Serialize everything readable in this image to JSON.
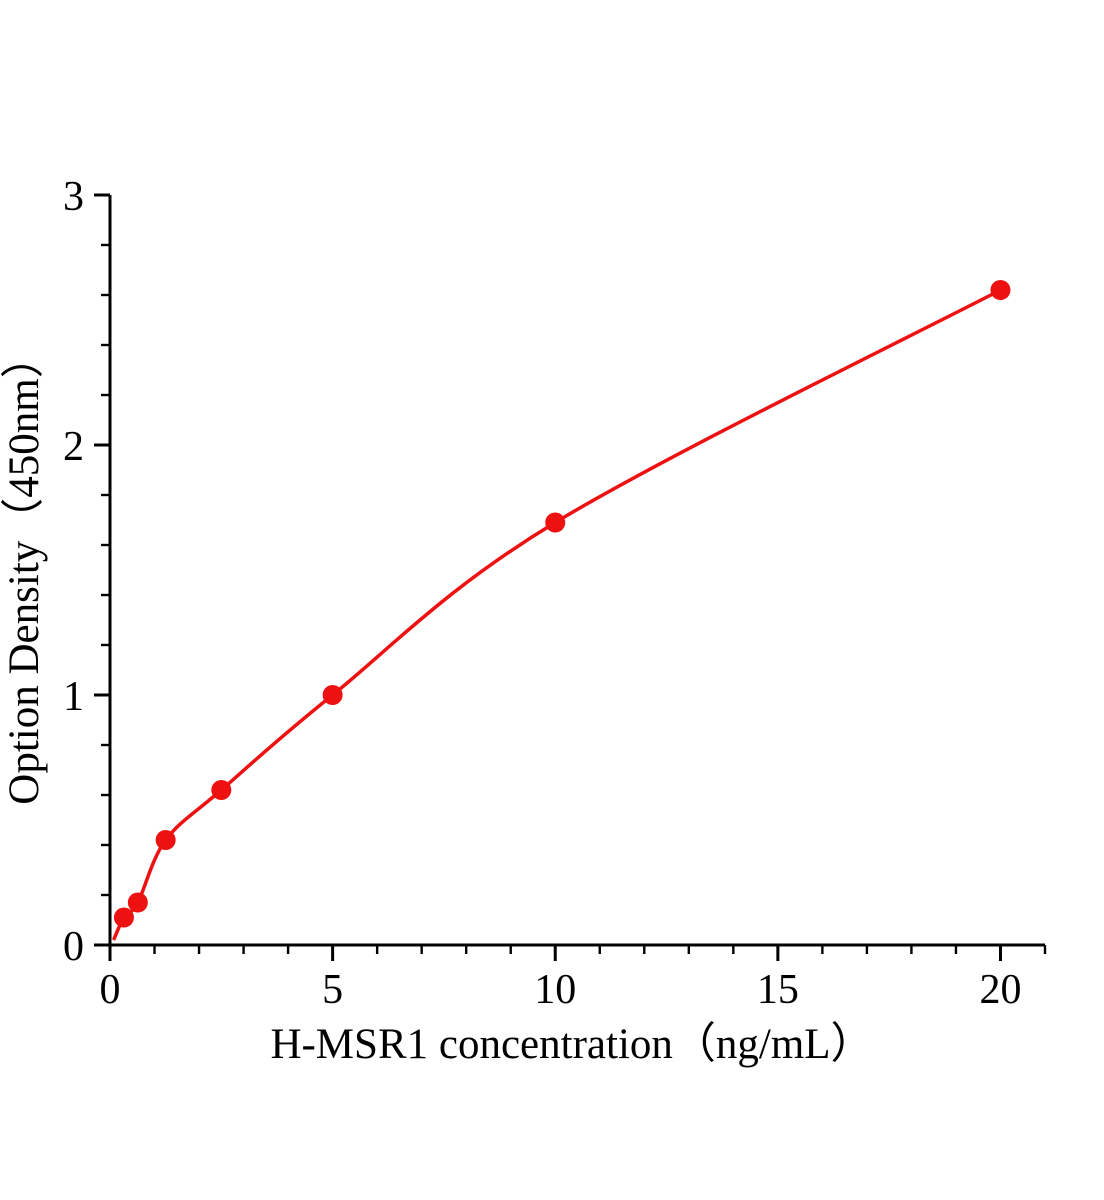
{
  "chart_data": {
    "type": "scatter",
    "title": "",
    "xlabel": "H-MSR1 concentration（ng/mL）",
    "ylabel": "Option Density（450nm）",
    "x": [
      0.313,
      0.625,
      1.25,
      2.5,
      5,
      10,
      20
    ],
    "y": [
      0.11,
      0.17,
      0.42,
      0.62,
      1.0,
      1.69,
      2.62
    ],
    "fit_curve_start": {
      "x": 0.08,
      "y": 0.02
    },
    "xlim": [
      0,
      21
    ],
    "ylim": [
      0,
      3
    ],
    "x_ticks": [
      0,
      5,
      10,
      15,
      20
    ],
    "y_ticks": [
      0,
      1,
      2,
      3
    ],
    "x_minor_step": 1,
    "y_minor_step": 0.2,
    "grid": false,
    "legend": null,
    "line_color": "#ee1111",
    "marker_color": "#ee1111",
    "axis_color": "#000000"
  }
}
